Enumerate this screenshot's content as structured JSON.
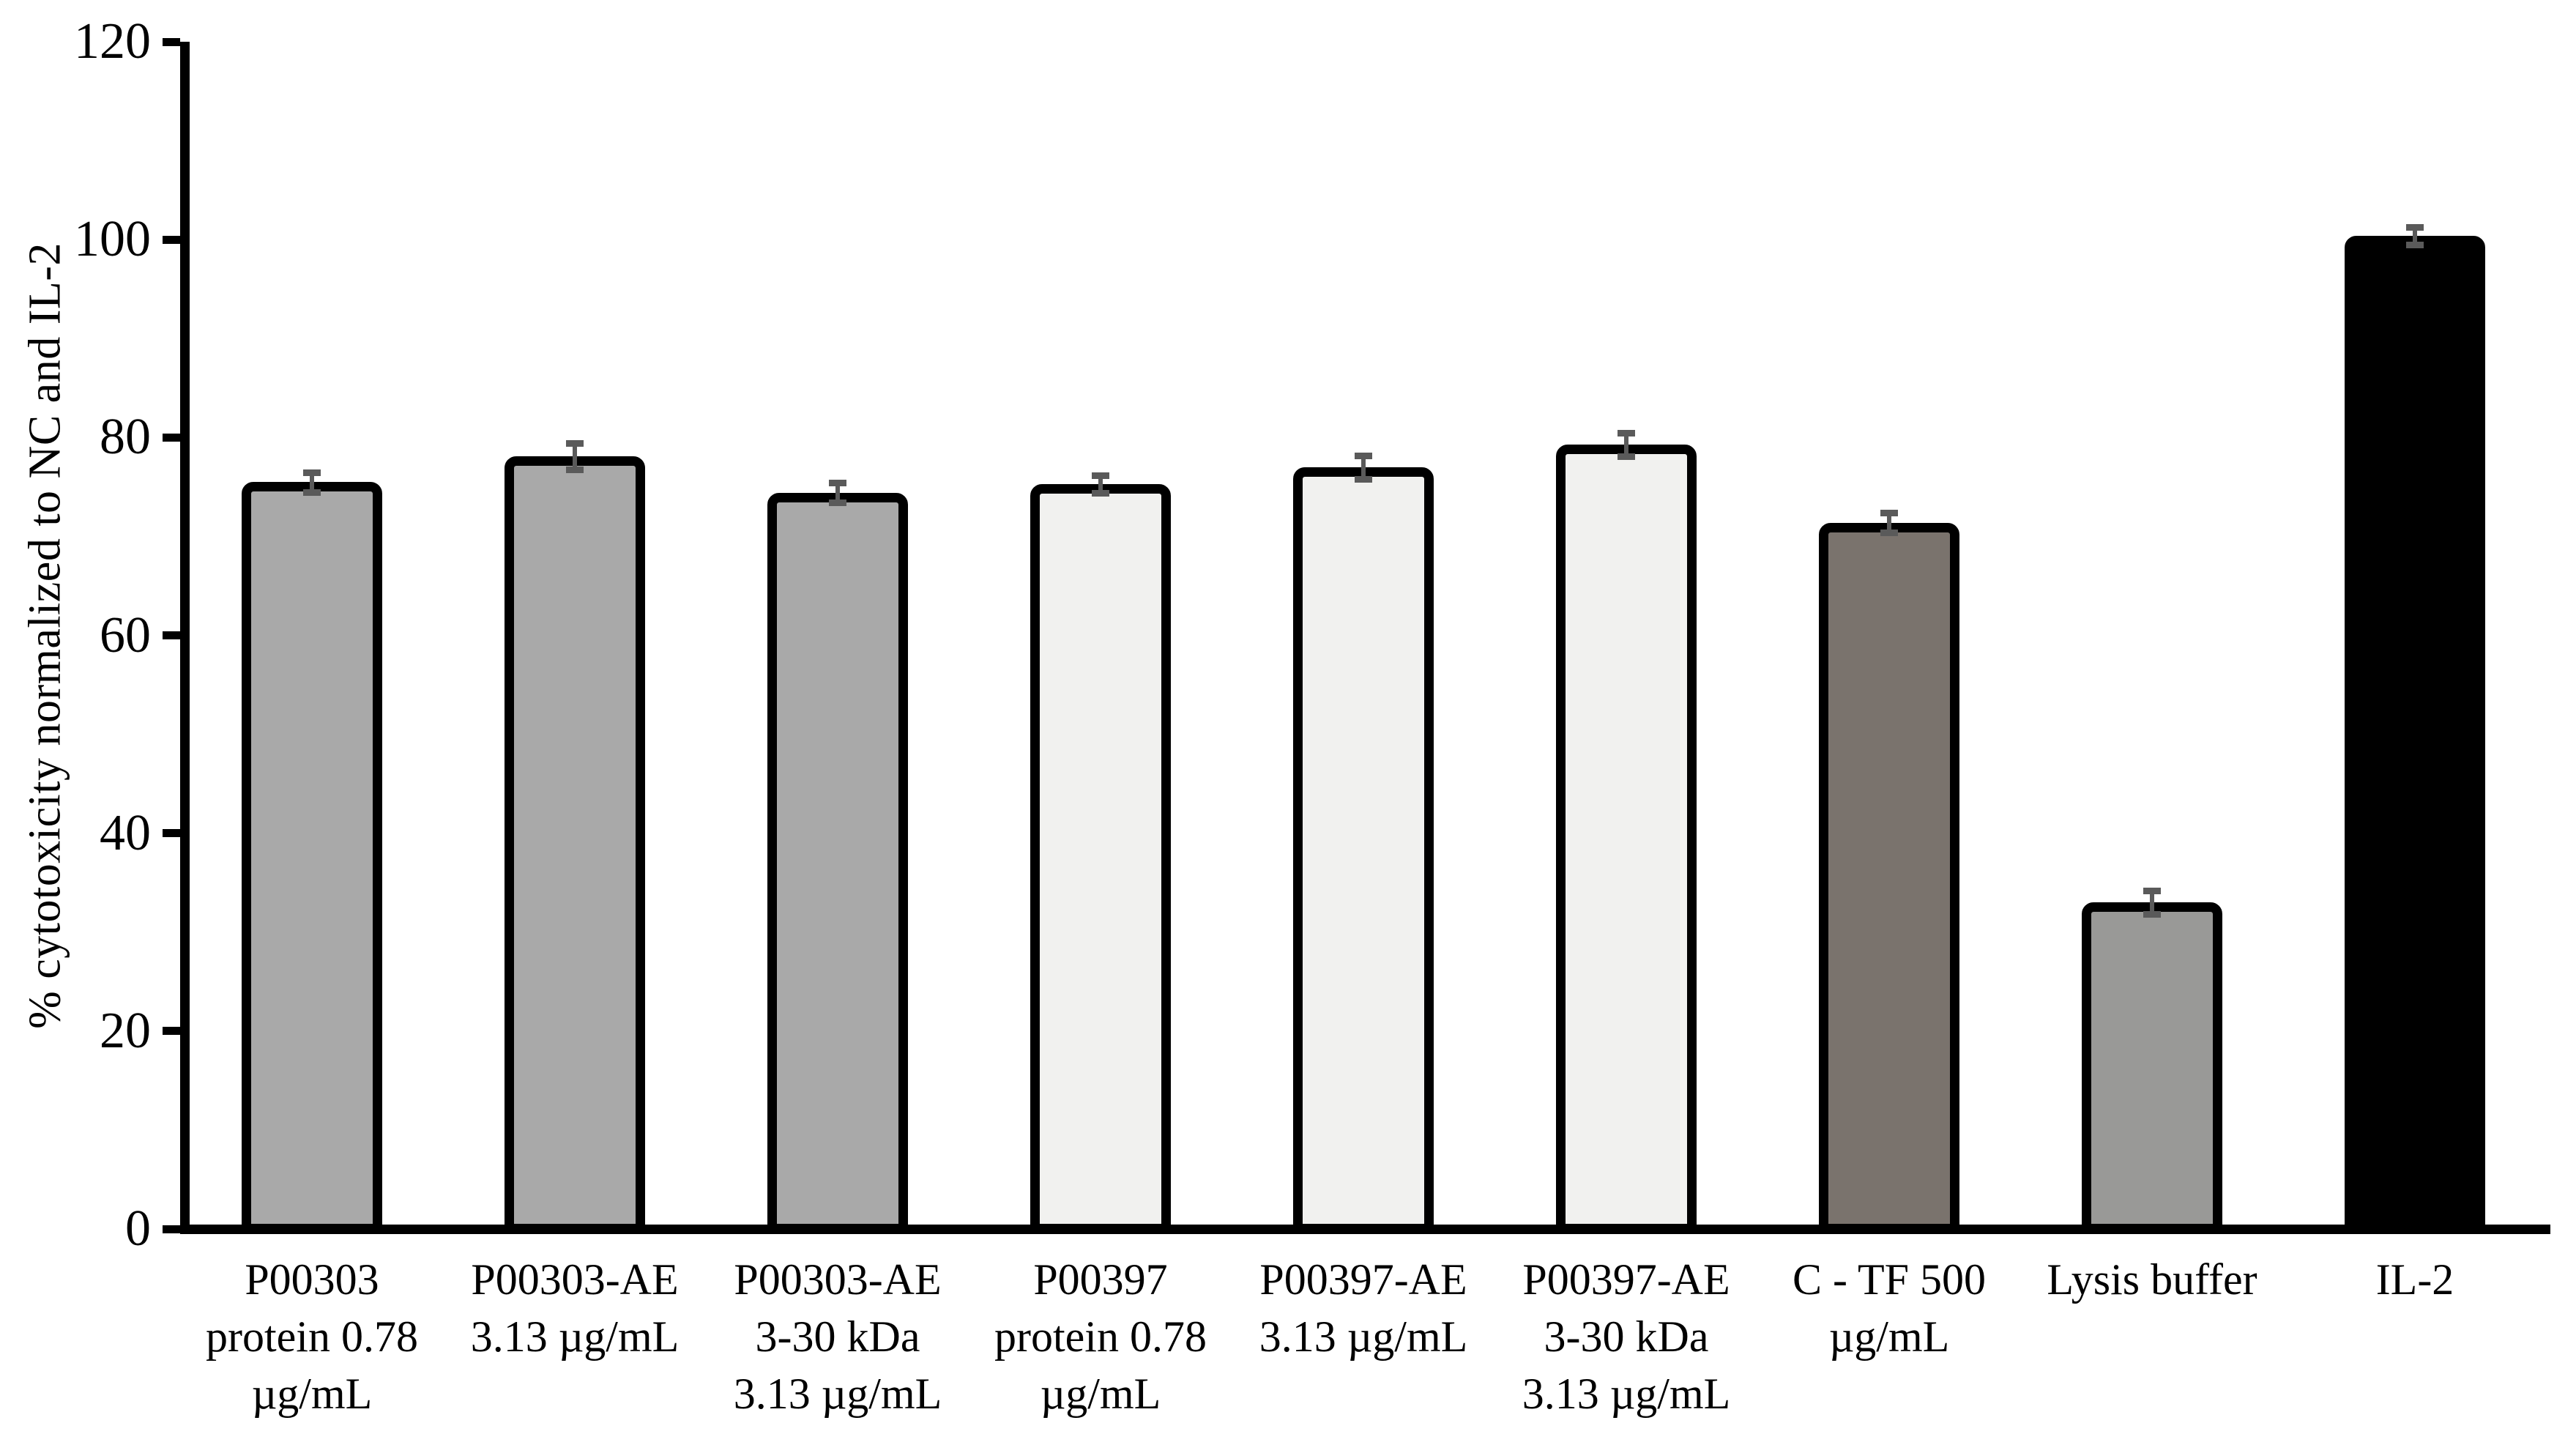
{
  "chart_data": {
    "type": "bar",
    "title": "",
    "xlabel": "",
    "ylabel": "% cytotoxicity normalized to NC and IL-2",
    "ylim": [
      0,
      120
    ],
    "yticks": [
      0,
      20,
      40,
      60,
      80,
      100,
      120
    ],
    "grid": false,
    "legend": "none",
    "background_color": "#ffffff",
    "categories": [
      "P00303 protein 0.78 µg/mL",
      "P00303-AE 3.13 µg/mL",
      "P00303-AE 3-30 kDa 3.13 µg/mL",
      "P00397 protein 0.78 µg/mL",
      "P00397-AE 3.13 µg/mL",
      "P00397-AE 3-30 kDa 3.13 µg/mL",
      "C - TF 500 µg/mL",
      "Lysis buffer",
      "IL-2"
    ],
    "category_label_lines": [
      [
        "P00303",
        "protein 0.78",
        "µg/mL"
      ],
      [
        "P00303-AE",
        "3.13 µg/mL"
      ],
      [
        "P00303-AE",
        "3-30 kDa",
        "3.13 µg/mL"
      ],
      [
        "P00397",
        "protein 0.78",
        "µg/mL"
      ],
      [
        "P00397-AE",
        "3.13 µg/mL"
      ],
      [
        "P00397-AE",
        "3-30 kDa",
        "3.13 µg/mL"
      ],
      [
        "C - TF 500",
        "µg/mL"
      ],
      [
        "Lysis buffer"
      ],
      [
        "IL-2"
      ]
    ],
    "series": [
      {
        "name": "% cytotoxicity normalized to NC and IL-2",
        "values": [
          75.5,
          78.1,
          74.4,
          75.3,
          77.0,
          79.3,
          71.4,
          33.0,
          100.4
        ],
        "errors": [
          1.0,
          1.3,
          1.0,
          0.9,
          1.2,
          1.2,
          1.0,
          1.2,
          0.9
        ]
      }
    ],
    "bar_fill_colors": [
      "#a9a9a9",
      "#a9a9a9",
      "#a9a9a9",
      "#f1f1ef",
      "#f1f1ef",
      "#f1f1ef",
      "#7a736d",
      "#999997",
      "#000000"
    ],
    "bar_border_color": "#000000",
    "error_bar_color": "#5a5a5a",
    "axis_color": "#000000",
    "text_color": "#000000"
  }
}
